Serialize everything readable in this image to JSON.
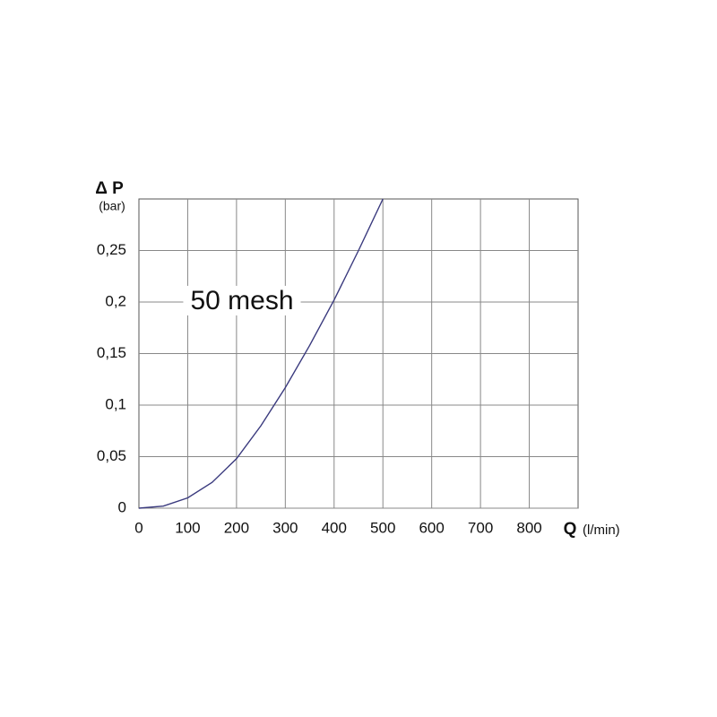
{
  "chart_data": {
    "type": "line",
    "y_label": "Δ P",
    "y_unit": "(bar)",
    "x_label": "Q",
    "x_unit": "(l/min)",
    "annotation": "50 mesh",
    "x": [
      0,
      50,
      100,
      150,
      200,
      250,
      300,
      350,
      400,
      450,
      500
    ],
    "series": [
      {
        "name": "50 mesh",
        "color": "#3a3a7e",
        "values": [
          0,
          0.002,
          0.01,
          0.025,
          0.048,
          0.08,
          0.117,
          0.158,
          0.202,
          0.25,
          0.3
        ]
      }
    ],
    "xlim": [
      0,
      900
    ],
    "xticks": [
      0,
      100,
      200,
      300,
      400,
      500,
      600,
      700,
      800
    ],
    "xgrid": [
      100,
      200,
      300,
      400,
      500,
      600,
      700,
      800
    ],
    "ylim": [
      0,
      0.3
    ],
    "yticks": [
      0,
      {
        "value": 0.05,
        "label": "0,05"
      },
      {
        "value": 0.1,
        "label": "0,1"
      },
      {
        "value": 0.15,
        "label": "0,15"
      },
      {
        "value": 0.2,
        "label": "0,2"
      },
      {
        "value": 0.25,
        "label": "0,25"
      }
    ],
    "grid": true
  }
}
